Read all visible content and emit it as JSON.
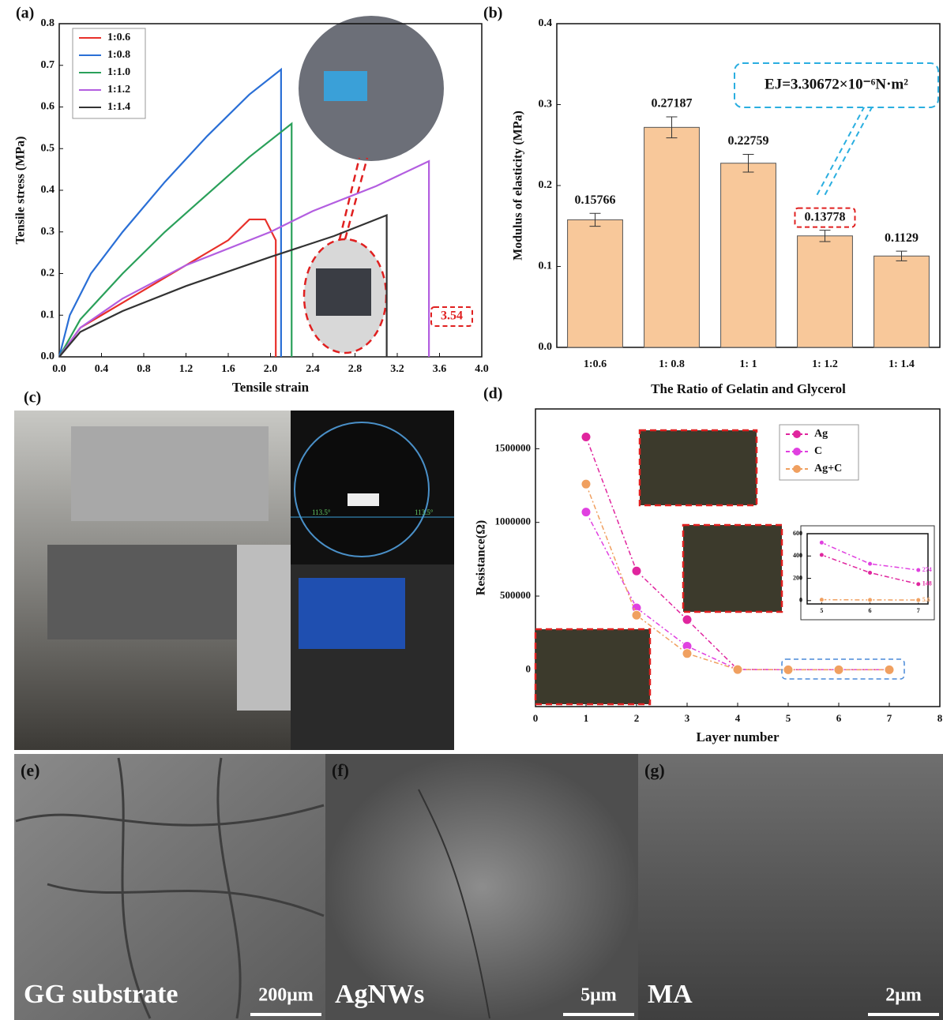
{
  "chart_data": [
    {
      "type": "line",
      "panel_label": "(a)",
      "x_label": "Tensile strain",
      "y_label": "Tensile stress (MPa)",
      "xlim": [
        0,
        4
      ],
      "xticks": [
        {
          "value": 0,
          "label": "0.0"
        },
        0.4,
        0.8,
        1.2,
        1.6,
        {
          "value": 2,
          "label": "2.0"
        },
        2.4,
        2.8,
        3.2,
        3.6,
        {
          "value": 4,
          "label": "4.0"
        }
      ],
      "ylim": [
        0,
        0.8
      ],
      "yticks": [
        {
          "value": 0,
          "label": "0.0"
        },
        0.1,
        0.2,
        0.3,
        0.4,
        0.5,
        0.6,
        0.7,
        0.8
      ],
      "legend": "upper left",
      "annotation": "3.54",
      "series": [
        {
          "name": "1:0.6",
          "color": "#e8302a",
          "x": [
            0,
            0.2,
            0.4,
            0.8,
            1.2,
            1.6,
            1.8,
            1.95,
            2.05,
            2.05
          ],
          "values": [
            0,
            0.07,
            0.1,
            0.16,
            0.22,
            0.28,
            0.33,
            0.33,
            0.28,
            0
          ]
        },
        {
          "name": "1:0.8",
          "color": "#2a6fd6",
          "x": [
            0,
            0.1,
            0.3,
            0.6,
            1.0,
            1.4,
            1.8,
            2.1,
            2.1
          ],
          "values": [
            0,
            0.1,
            0.2,
            0.3,
            0.42,
            0.53,
            0.63,
            0.69,
            0
          ]
        },
        {
          "name": "1:1.0",
          "color": "#2aa05a",
          "x": [
            0,
            0.2,
            0.6,
            1.0,
            1.4,
            1.8,
            2.2,
            2.2
          ],
          "values": [
            0,
            0.09,
            0.2,
            0.3,
            0.39,
            0.48,
            0.56,
            0
          ]
        },
        {
          "name": "1:1.2",
          "color": "#b35ee0",
          "x": [
            0,
            0.2,
            0.6,
            1.2,
            2.0,
            2.4,
            3.0,
            3.5,
            3.5
          ],
          "values": [
            0,
            0.07,
            0.14,
            0.22,
            0.3,
            0.35,
            0.41,
            0.47,
            0
          ]
        },
        {
          "name": "1:1.4",
          "color": "#333333",
          "x": [
            0,
            0.2,
            0.6,
            1.2,
            2.0,
            2.6,
            3.1,
            3.1
          ],
          "values": [
            0,
            0.06,
            0.11,
            0.17,
            0.24,
            0.29,
            0.34,
            0
          ]
        }
      ]
    },
    {
      "type": "bar",
      "panel_label": "(b)",
      "x_label": "The Ratio of Gelatin and Glycerol",
      "y_label": "Modulus of elasticity (MPa)",
      "categories": [
        "1:0.6",
        "1: 0.8",
        "1: 1",
        "1: 1.2",
        "1: 1.4"
      ],
      "values": [
        0.15766,
        0.27187,
        0.22759,
        0.13778,
        0.1129
      ],
      "errors": [
        0.008,
        0.013,
        0.011,
        0.007,
        0.006
      ],
      "color": "#f8c89a",
      "ylim": [
        0,
        0.4
      ],
      "yticks": [
        {
          "value": 0,
          "label": "0.0"
        },
        0.1,
        0.2,
        0.3,
        0.4
      ],
      "annotation": "EJ=3.30672×10⁻⁶N·m²"
    },
    {
      "type": "line",
      "panel_label": "(d)",
      "x_label": "Layer number",
      "y_label": "Resistance(Ω)",
      "markers": true,
      "legend": "upper right",
      "xlim": [
        0,
        8
      ],
      "xticks": [
        0,
        1,
        2,
        3,
        4,
        5,
        6,
        7,
        8
      ],
      "ylim": [
        -250000,
        1770000
      ],
      "yticks": [
        0,
        500000,
        1000000,
        1500000
      ],
      "series": [
        {
          "name": "Ag",
          "color": "#e0259e",
          "x": [
            1,
            2,
            3,
            4,
            5,
            6,
            7
          ],
          "values": [
            1580000,
            670000,
            340000,
            2000,
            410,
            250,
            148
          ]
        },
        {
          "name": "C",
          "color": "#e040e0",
          "x": [
            1,
            2,
            3,
            4,
            5,
            6,
            7
          ],
          "values": [
            1070000,
            420000,
            160000,
            1500,
            520,
            330,
            274
          ]
        },
        {
          "name": "Ag+C",
          "color": "#f0a060",
          "x": [
            1,
            2,
            3,
            4,
            5,
            6,
            7
          ],
          "values": [
            1260000,
            370000,
            110000,
            1000,
            8,
            6,
            5.6
          ]
        }
      ]
    },
    {
      "type": "line",
      "markers": true,
      "label_last": true,
      "xlim": [
        4.7,
        7.2
      ],
      "xticks": [
        5,
        6,
        7
      ],
      "ylim": [
        -30,
        600
      ],
      "yticks": [
        0,
        200,
        400,
        600
      ],
      "series": [
        {
          "color": "#e040e0",
          "x": [
            5,
            6,
            7
          ],
          "values": [
            520,
            330,
            274
          ]
        },
        {
          "color": "#e0259e",
          "x": [
            5,
            6,
            7
          ],
          "values": [
            410,
            250,
            148
          ]
        },
        {
          "color": "#f0a060",
          "x": [
            5,
            6,
            7
          ],
          "values": [
            8,
            6,
            5.6
          ]
        }
      ]
    }
  ],
  "panels": {
    "c": {
      "label": "(c)",
      "angles": [
        "113.5°",
        "113.5°"
      ]
    },
    "e": {
      "label": "(e)",
      "caption": "GG substrate",
      "scale": "200μm"
    },
    "f": {
      "label": "(f)",
      "caption": "AgNWs",
      "scale": "5μm"
    },
    "g": {
      "label": "(g)",
      "caption": "MA",
      "scale": "2μm"
    }
  }
}
